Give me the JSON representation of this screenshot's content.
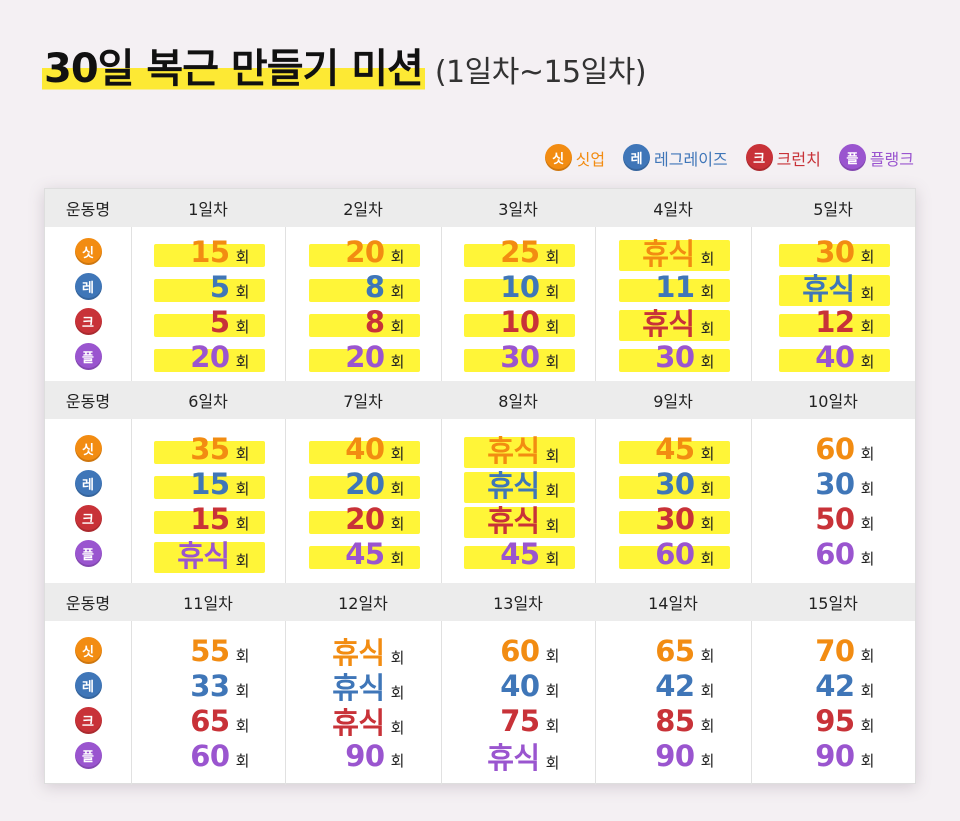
{
  "title": {
    "main": "30일 복근 만들기 미션",
    "sub": "(1일차~15일차)"
  },
  "legend": [
    {
      "badge": "싯",
      "label": "싯업",
      "color": "#f28c12"
    },
    {
      "badge": "레",
      "label": "레그레이즈",
      "color": "#3f76b8"
    },
    {
      "badge": "크",
      "label": "크런치",
      "color": "#c83238"
    },
    {
      "badge": "플",
      "label": "플랭크",
      "color": "#9a55cf"
    }
  ],
  "table": {
    "name_header": "운동명",
    "unit": "회",
    "exercises": [
      {
        "badge": "싯",
        "color": "#f28c12"
      },
      {
        "badge": "레",
        "color": "#3f76b8"
      },
      {
        "badge": "크",
        "color": "#c83238"
      },
      {
        "badge": "플",
        "color": "#9a55cf"
      }
    ],
    "blocks": [
      {
        "days": [
          {
            "label": "1일차",
            "values": [
              "15",
              "5",
              "5",
              "20"
            ],
            "highlighted": [
              true,
              true,
              true,
              true
            ]
          },
          {
            "label": "2일차",
            "values": [
              "20",
              "8",
              "8",
              "20"
            ],
            "highlighted": [
              true,
              true,
              true,
              true
            ]
          },
          {
            "label": "3일차",
            "values": [
              "25",
              "10",
              "10",
              "30"
            ],
            "highlighted": [
              true,
              true,
              true,
              true
            ]
          },
          {
            "label": "4일차",
            "values": [
              "휴식",
              "11",
              "휴식",
              "30"
            ],
            "highlighted": [
              true,
              true,
              true,
              true
            ]
          },
          {
            "label": "5일차",
            "values": [
              "30",
              "휴식",
              "12",
              "40"
            ],
            "highlighted": [
              true,
              true,
              true,
              true
            ]
          }
        ]
      },
      {
        "days": [
          {
            "label": "6일차",
            "values": [
              "35",
              "15",
              "15",
              "휴식"
            ],
            "highlighted": [
              true,
              true,
              true,
              true
            ]
          },
          {
            "label": "7일차",
            "values": [
              "40",
              "20",
              "20",
              "45"
            ],
            "highlighted": [
              true,
              true,
              true,
              true
            ]
          },
          {
            "label": "8일차",
            "values": [
              "휴식",
              "휴식",
              "휴식",
              "45"
            ],
            "highlighted": [
              true,
              true,
              true,
              true
            ]
          },
          {
            "label": "9일차",
            "values": [
              "45",
              "30",
              "30",
              "60"
            ],
            "highlighted": [
              true,
              true,
              true,
              true
            ]
          },
          {
            "label": "10일차",
            "values": [
              "60",
              "30",
              "50",
              "60"
            ],
            "highlighted": [
              false,
              false,
              false,
              false
            ]
          }
        ]
      },
      {
        "days": [
          {
            "label": "11일차",
            "values": [
              "55",
              "33",
              "65",
              "60"
            ],
            "highlighted": [
              false,
              false,
              false,
              false
            ]
          },
          {
            "label": "12일차",
            "values": [
              "휴식",
              "휴식",
              "휴식",
              "90"
            ],
            "highlighted": [
              false,
              false,
              false,
              false
            ]
          },
          {
            "label": "13일차",
            "values": [
              "60",
              "40",
              "75",
              "휴식"
            ],
            "highlighted": [
              false,
              false,
              false,
              false
            ]
          },
          {
            "label": "14일차",
            "values": [
              "65",
              "42",
              "85",
              "90"
            ],
            "highlighted": [
              false,
              false,
              false,
              false
            ]
          },
          {
            "label": "15일차",
            "values": [
              "70",
              "42",
              "95",
              "90"
            ],
            "highlighted": [
              false,
              false,
              false,
              false
            ]
          }
        ]
      }
    ]
  }
}
